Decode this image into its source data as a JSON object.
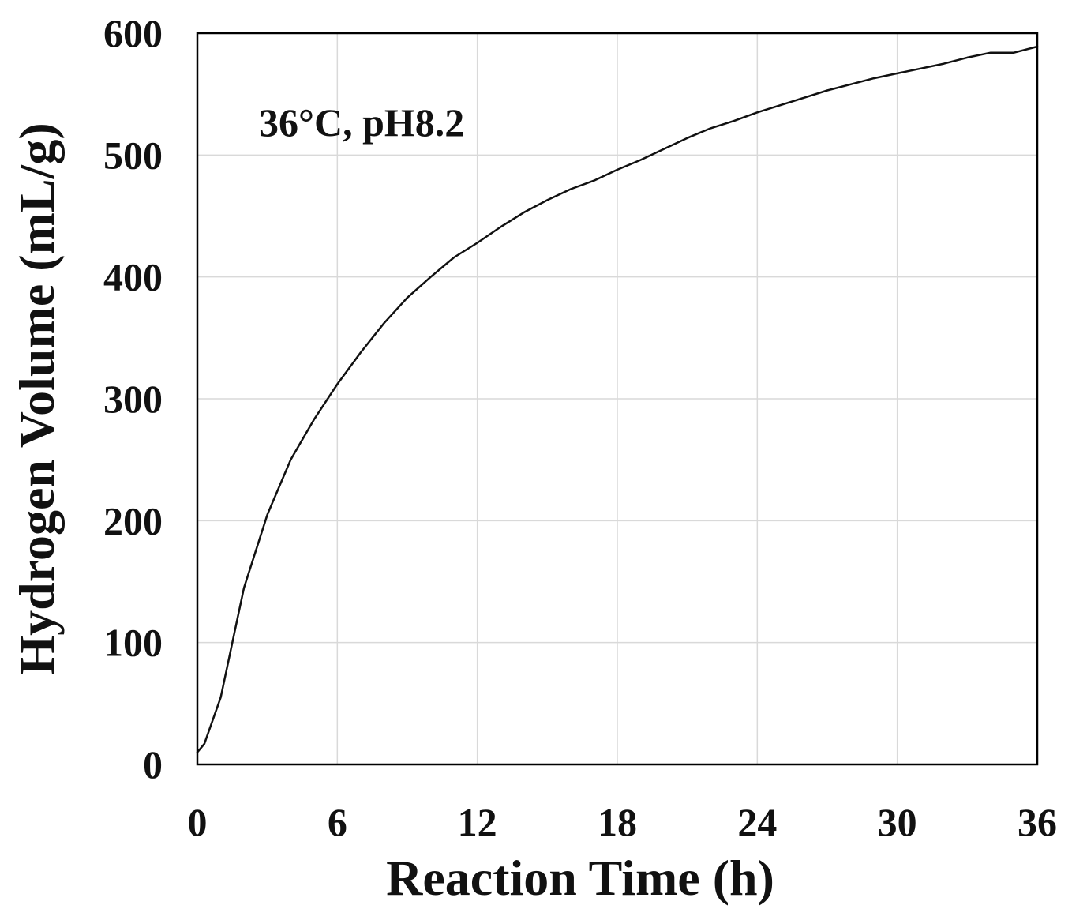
{
  "chart_data": {
    "type": "line",
    "title": "",
    "annotation": "36°C, pH8.2",
    "xlabel": "Reaction Time (h)",
    "ylabel": "Hydrogen Volume (mL/g)",
    "xlim": [
      0,
      36
    ],
    "ylim": [
      0,
      600
    ],
    "xticks": [
      0,
      6,
      12,
      18,
      24,
      30,
      36
    ],
    "yticks": [
      0,
      100,
      200,
      300,
      400,
      500,
      600
    ],
    "grid": true,
    "legend": "none",
    "series": [
      {
        "name": "36°C, pH8.2",
        "x": [
          0,
          0.3,
          1,
          1.5,
          2,
          3,
          4,
          5,
          6,
          7,
          8,
          9,
          10,
          11,
          12,
          13,
          14,
          15,
          16,
          17,
          18,
          19,
          20,
          21,
          22,
          23,
          24,
          25,
          26,
          27,
          28,
          29,
          30,
          31,
          32,
          33,
          34,
          35,
          36
        ],
        "values": [
          10,
          17,
          55,
          100,
          145,
          205,
          250,
          283,
          312,
          338,
          362,
          383,
          400,
          416,
          428,
          441,
          453,
          463,
          472,
          479,
          488,
          496,
          505,
          514,
          522,
          528,
          535,
          541,
          547,
          553,
          558,
          563,
          567,
          571,
          575,
          580,
          584,
          584,
          589
        ]
      }
    ]
  }
}
